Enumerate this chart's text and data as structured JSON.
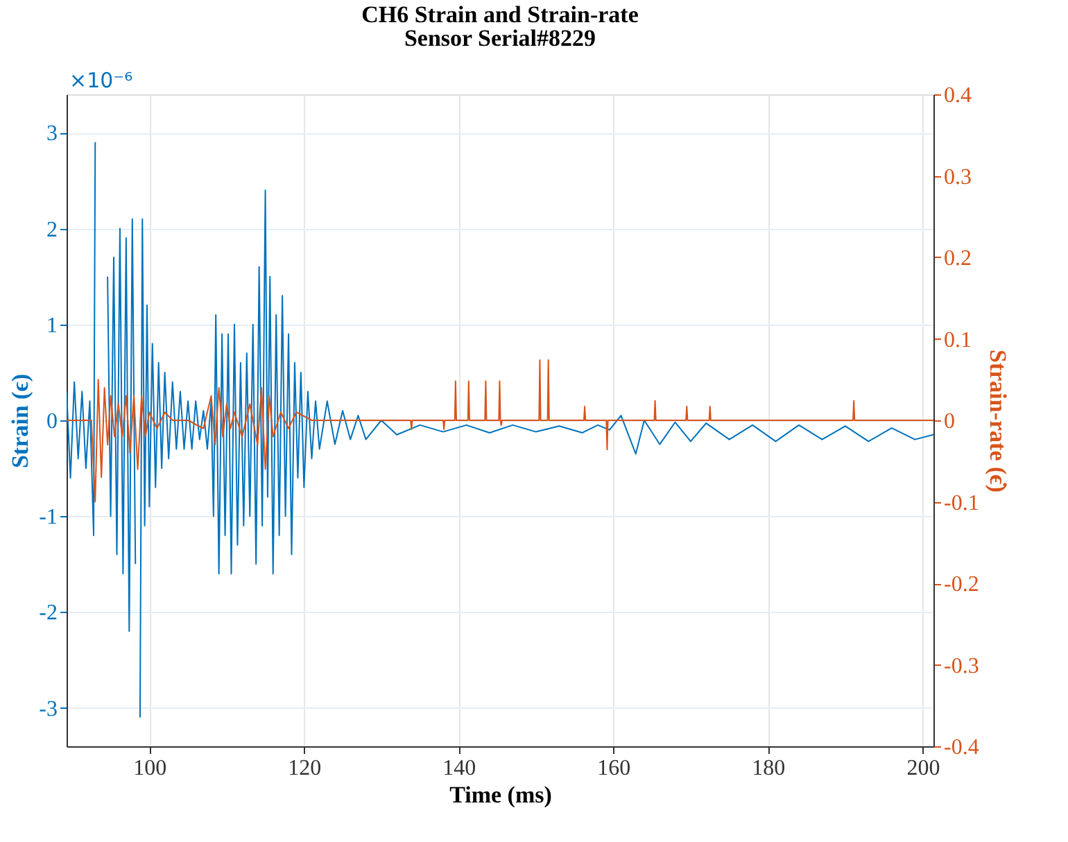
{
  "chart_data": {
    "type": "line",
    "title": "CH6 Strain and Strain-rate",
    "subtitle": "Sensor Serial#8229",
    "xlabel": "Time (ms)",
    "ylabel": "Strain (ϵ)",
    "y2label": "Strain-rate (ϵ̇)",
    "annotations": [
      "×10⁻⁶"
    ],
    "xlim": [
      89.3,
      201.4
    ],
    "xticks": [
      100,
      120,
      140,
      160,
      180,
      200
    ],
    "ylim": [
      -3.4,
      3.4
    ],
    "yticks": [
      -3,
      -2,
      -1,
      0,
      1,
      2,
      3
    ],
    "y2lim": [
      -0.4,
      0.4
    ],
    "y2ticks": [
      -0.4,
      -0.3,
      -0.2,
      -0.1,
      0,
      0.1,
      0.2,
      0.3,
      0.4
    ],
    "grid": true,
    "line_style": "solid",
    "marker": "none",
    "series": [
      {
        "color": "#0072bd",
        "x": [
          89.3,
          89.8,
          90.3,
          90.8,
          91.3,
          91.8,
          92.3,
          92.8,
          93.0,
          93.3,
          93.6,
          94.0,
          94.3,
          94.6,
          95.0,
          95.4,
          95.8,
          96.2,
          96.6,
          97.0,
          97.4,
          97.8,
          98.2,
          98.5,
          98.8,
          99.1,
          99.4,
          99.7,
          100.0,
          100.4,
          100.8,
          101.2,
          101.6,
          102.0,
          102.5,
          103.0,
          103.5,
          104.0,
          104.5,
          105.0,
          105.5,
          106.0,
          106.5,
          107.0,
          107.5,
          108.0,
          108.3,
          108.6,
          109.0,
          109.4,
          109.8,
          110.2,
          110.6,
          111.0,
          111.4,
          111.8,
          112.2,
          112.6,
          113.0,
          113.4,
          113.8,
          114.2,
          114.6,
          115.0,
          115.3,
          115.6,
          116.0,
          116.4,
          116.8,
          117.2,
          117.6,
          118.0,
          118.4,
          118.8,
          119.2,
          119.6,
          120.0,
          120.5,
          121.0,
          121.5,
          122.0,
          123.0,
          124.0,
          125.0,
          126.0,
          127.0,
          128.0,
          130.0,
          132.0,
          135.0,
          138.0,
          141.0,
          144.0,
          147.0,
          150.0,
          153.0,
          156.0,
          158.0,
          159.5,
          161.0,
          162.9,
          164.0,
          166.0,
          168.0,
          170.0,
          172.0,
          175.0,
          178.0,
          181.0,
          184.0,
          187.0,
          190.0,
          193.0,
          196.0,
          199.0,
          201.4
        ],
        "values": [
          0.3,
          -0.6,
          0.4,
          -0.4,
          0.3,
          -0.5,
          0.2,
          -1.2,
          2.9,
          null,
          null,
          null,
          null,
          1.5,
          -1.0,
          1.7,
          -1.4,
          2.0,
          -1.6,
          1.9,
          -2.2,
          2.1,
          -1.5,
          null,
          -3.1,
          2.1,
          -1.1,
          1.2,
          -0.9,
          0.8,
          -0.7,
          0.6,
          -0.5,
          0.5,
          -0.4,
          0.4,
          -0.3,
          0.3,
          -0.3,
          0.2,
          -0.3,
          0.2,
          -0.2,
          0.1,
          -0.3,
          0.2,
          -1.0,
          1.1,
          -1.6,
          0.9,
          -1.2,
          0.9,
          -1.6,
          1.0,
          -1.3,
          0.6,
          -1.1,
          0.7,
          -1.0,
          1.0,
          -1.5,
          1.6,
          -1.1,
          2.4,
          -0.8,
          1.5,
          -1.6,
          1.1,
          -1.2,
          1.3,
          -1.0,
          0.9,
          -1.4,
          0.6,
          -0.6,
          0.5,
          -0.7,
          0.3,
          -0.4,
          0.2,
          -0.3,
          0.2,
          -0.25,
          0.1,
          -0.2,
          0.05,
          -0.2,
          0.0,
          -0.15,
          -0.05,
          -0.12,
          -0.05,
          -0.13,
          -0.05,
          -0.12,
          -0.06,
          -0.13,
          -0.05,
          -0.1,
          0.05,
          -0.35,
          0.0,
          -0.25,
          -0.02,
          -0.22,
          -0.03,
          -0.2,
          -0.05,
          -0.22,
          -0.05,
          -0.2,
          -0.06,
          -0.22,
          -0.08,
          -0.2,
          -0.15
        ]
      },
      {
        "color": "#d95319",
        "x": [
          89.3,
          92.5,
          93.0,
          93.4,
          93.8,
          94.2,
          94.6,
          95.0,
          95.5,
          96.0,
          96.5,
          97.0,
          97.5,
          98.0,
          98.5,
          99.0,
          99.5,
          100.0,
          101.0,
          102.0,
          103.0,
          105.0,
          107.0,
          108.0,
          108.5,
          109.0,
          109.5,
          110.0,
          110.5,
          111.0,
          112.0,
          113.0,
          114.0,
          114.5,
          115.0,
          115.5,
          116.0,
          117.0,
          118.0,
          119.0,
          121.0,
          124.0,
          127.0,
          130.0,
          133.8,
          133.9,
          134.0,
          138.0,
          138.1,
          138.2,
          139.5,
          139.6,
          139.7,
          141.2,
          141.3,
          141.4,
          143.4,
          143.5,
          143.6,
          145.2,
          145.3,
          145.4,
          145.5,
          145.6,
          150.4,
          150.5,
          150.6,
          151.5,
          151.6,
          151.7,
          156.2,
          156.3,
          156.4,
          159.1,
          159.2,
          159.3,
          165.3,
          165.4,
          165.5,
          169.4,
          169.5,
          169.6,
          172.4,
          172.5,
          172.6,
          191.0,
          191.1,
          191.2,
          201.4
        ],
        "values": [
          0.0,
          0.0,
          -0.1,
          0.05,
          -0.07,
          0.04,
          -0.03,
          0.03,
          -0.02,
          0.02,
          -0.02,
          0.03,
          -0.04,
          0.03,
          -0.06,
          0.03,
          -0.02,
          0.01,
          -0.01,
          0.01,
          0.0,
          0.0,
          -0.01,
          0.03,
          -0.03,
          0.04,
          -0.02,
          0.02,
          -0.01,
          0.01,
          -0.02,
          0.02,
          -0.03,
          0.04,
          -0.06,
          0.03,
          -0.02,
          0.01,
          -0.01,
          0.01,
          0.0,
          0.0,
          0.0,
          0.0,
          0.0,
          -0.011,
          0.0,
          0.0,
          -0.011,
          0.0,
          0.0,
          0.048,
          0.0,
          0.0,
          0.048,
          0.0,
          0.0,
          0.048,
          0.0,
          0.0,
          0.048,
          0.0,
          -0.006,
          0.0,
          0.0,
          0.074,
          0.0,
          0.0,
          0.074,
          0.0,
          0.0,
          0.017,
          0.0,
          0.0,
          -0.036,
          0.0,
          0.0,
          0.024,
          0.0,
          0.0,
          0.017,
          0.0,
          0.0,
          0.017,
          0.0,
          0.0,
          0.024,
          0.0,
          0.0
        ],
        "axis": "y2"
      }
    ]
  }
}
